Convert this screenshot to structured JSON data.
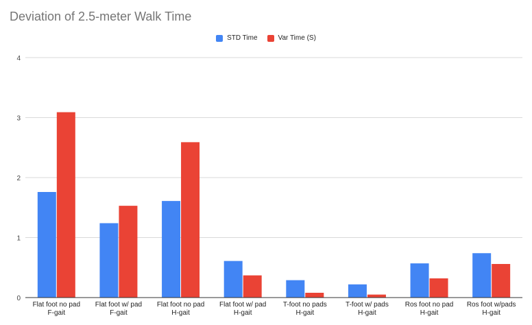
{
  "chart_data": {
    "type": "bar",
    "title": "Deviation of 2.5-meter Walk Time",
    "categories": [
      [
        "Flat foot no pad",
        "F-gait"
      ],
      [
        "Flat foot w/ pad",
        "F-gait"
      ],
      [
        "Flat foot no pad",
        "H-gait"
      ],
      [
        "Flat foot w/ pad",
        "H-gait"
      ],
      [
        "T-foot no pads",
        "H-gait"
      ],
      [
        "T-foot w/ pads",
        "H-gait"
      ],
      [
        "Ros foot no pad",
        "H-gait"
      ],
      [
        "Ros foot w/pads",
        "H-gait"
      ]
    ],
    "series": [
      {
        "name": "STD Time",
        "color": "#4285f4",
        "values": [
          1.76,
          1.24,
          1.61,
          0.61,
          0.29,
          0.22,
          0.57,
          0.74
        ]
      },
      {
        "name": "Var Time (S)",
        "color": "#ea4335",
        "values": [
          3.09,
          1.53,
          2.59,
          0.37,
          0.08,
          0.05,
          0.32,
          0.56
        ]
      }
    ],
    "ylim": [
      0,
      4
    ],
    "yticks": [
      "0",
      "1",
      "2",
      "3",
      "4"
    ],
    "grid": true,
    "legend_position": "top-center"
  }
}
